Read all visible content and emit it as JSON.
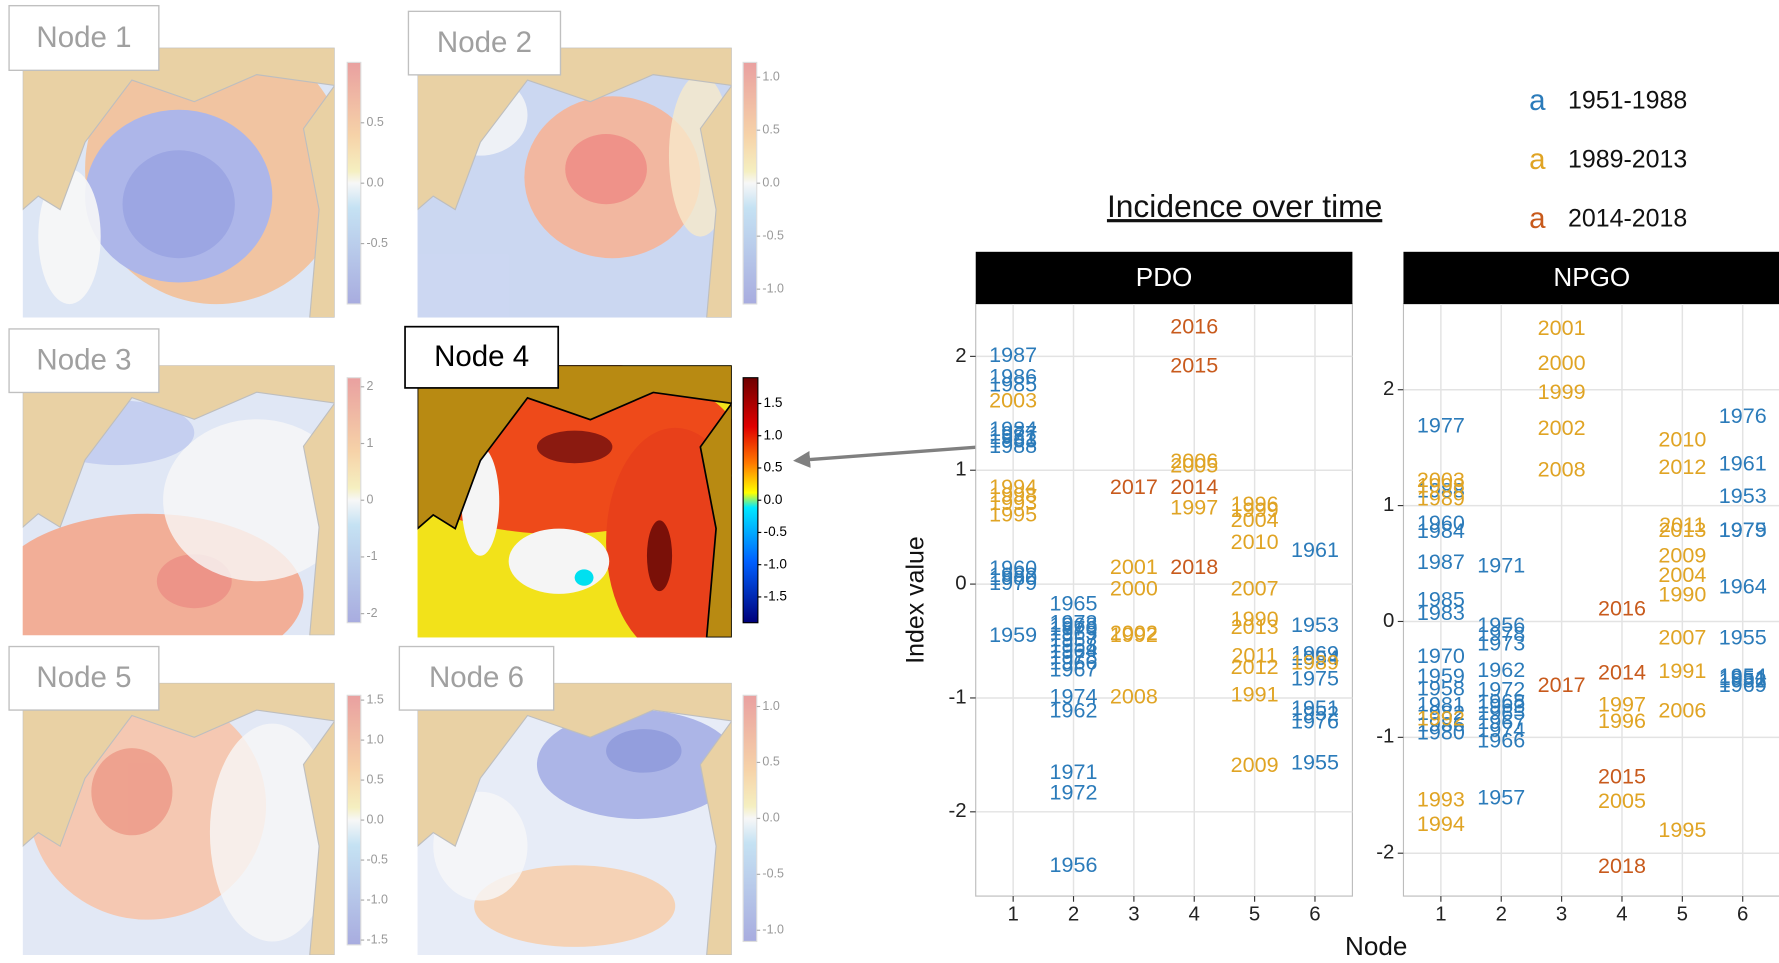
{
  "maps": [
    {
      "title": "Node 1",
      "colorbar_lim": [
        -1.0,
        1.0
      ],
      "colorbar_ticks": [
        0.5,
        {
          "value": 0,
          "label": "0.0"
        },
        -0.5
      ],
      "highlighted": false
    },
    {
      "title": "Node 2",
      "colorbar_lim": [
        -1.14,
        1.14
      ],
      "colorbar_ticks": [
        {
          "value": 1,
          "label": "1.0"
        },
        0.5,
        {
          "value": 0,
          "label": "0.0"
        },
        -0.5,
        {
          "value": -1,
          "label": "-1.0"
        }
      ],
      "highlighted": false
    },
    {
      "title": "Node 3",
      "colorbar_lim": [
        -2.16,
        2.16
      ],
      "colorbar_ticks": [
        2,
        1,
        0,
        -1,
        -2
      ],
      "highlighted": false
    },
    {
      "title": "Node 4",
      "colorbar_lim": [
        -1.9,
        1.9
      ],
      "colorbar_ticks": [
        1.5,
        {
          "value": 1,
          "label": "1.0"
        },
        0.5,
        {
          "value": 0,
          "label": "0.0"
        },
        -0.5,
        {
          "value": -1,
          "label": "-1.0"
        },
        -1.5
      ],
      "highlighted": true
    },
    {
      "title": "Node 5",
      "colorbar_lim": [
        -1.56,
        1.56
      ],
      "colorbar_ticks": [
        1.5,
        {
          "value": 1,
          "label": "1.0"
        },
        0.5,
        {
          "value": 0,
          "label": "0.0"
        },
        -0.5,
        {
          "value": -1,
          "label": "-1.0"
        },
        -1.5
      ],
      "highlighted": false
    },
    {
      "title": "Node 6",
      "colorbar_lim": [
        -1.1,
        1.1
      ],
      "colorbar_ticks": [
        {
          "value": 1,
          "label": "1.0"
        },
        0.5,
        {
          "value": 0,
          "label": "0.0"
        },
        -0.5,
        {
          "value": -1,
          "label": "-1.0"
        }
      ],
      "highlighted": false
    }
  ],
  "heading": "Incidence over time",
  "chart_data": [
    {
      "type": "text-scatter",
      "title": "PDO",
      "ylabel": "Index value",
      "legend_key": "a",
      "xlim": [
        0.38,
        6.62
      ],
      "xticks": [
        1,
        2,
        3,
        4,
        5,
        6
      ],
      "ylim": [
        -2.74,
        2.46
      ],
      "yticks": [
        2,
        1,
        0,
        -1,
        -2
      ],
      "grid": true,
      "series": [
        {
          "name": "1951-1988",
          "color": "#2b7bba",
          "x": [
            1,
            1,
            1,
            1,
            1,
            1,
            1,
            1,
            1,
            1,
            1,
            1,
            1,
            2,
            2,
            2,
            2,
            2,
            2,
            2,
            2,
            2,
            2,
            2,
            2,
            2,
            2,
            2,
            2,
            6,
            6,
            6,
            6,
            6,
            6,
            6,
            6,
            6
          ],
          "values": [
            2.0,
            1.81,
            1.74,
            1.35,
            1.31,
            1.28,
            1.25,
            1.2,
            0.13,
            0.07,
            0.04,
            0.0,
            -0.46,
            -0.18,
            -0.35,
            -0.37,
            -0.4,
            -0.44,
            -0.5,
            -0.55,
            -0.6,
            -0.65,
            -0.7,
            -0.76,
            -1.0,
            -1.12,
            -1.66,
            -1.84,
            -2.48,
            0.29,
            -0.37,
            -0.62,
            -0.66,
            -0.84,
            -1.1,
            -1.15,
            -1.22,
            -1.58
          ],
          "labels": [
            "1987",
            "1986",
            "1985",
            "1984",
            "1977",
            "1981",
            "1983",
            "1988",
            "1960",
            "1982",
            "1980",
            "1979",
            "1959",
            "1965",
            "1973",
            "1968",
            "1970",
            "1963",
            "1957",
            "1958",
            "1964",
            "1978",
            "1966",
            "1967",
            "1974",
            "1962",
            "1971",
            "1972",
            "1956",
            "1961",
            "1953",
            "1969",
            "1954",
            "1975",
            "1951",
            "1952",
            "1976",
            "1955"
          ]
        },
        {
          "name": "1989-2013",
          "color": "#e0a424",
          "x": [
            1,
            1,
            1,
            1,
            1,
            3,
            3,
            3,
            3,
            3,
            4,
            4,
            4,
            5,
            5,
            5,
            5,
            5,
            5,
            5,
            5,
            5,
            5,
            5,
            6
          ],
          "values": [
            1.6,
            0.84,
            0.77,
            0.7,
            0.6,
            0.14,
            -0.05,
            -0.44,
            -0.46,
            -1.0,
            1.07,
            1.03,
            0.66,
            0.69,
            0.64,
            0.55,
            0.36,
            -0.05,
            -0.32,
            -0.39,
            -0.64,
            -0.74,
            -0.98,
            -1.6,
            -0.7
          ],
          "labels": [
            "2003",
            "1994",
            "1998",
            "1993",
            "1995",
            "2001",
            "2000",
            "2002",
            "1992",
            "2008",
            "2006",
            "2005",
            "1997",
            "1996",
            "1999",
            "2004",
            "2010",
            "2007",
            "1990",
            "2013",
            "2011",
            "2012",
            "1991",
            "2009",
            "1989"
          ]
        },
        {
          "name": "2014-2018",
          "color": "#c85a1c",
          "x": [
            3,
            4,
            4,
            4,
            4
          ],
          "values": [
            0.84,
            2.25,
            1.91,
            0.84,
            0.14
          ],
          "labels": [
            "2017",
            "2016",
            "2015",
            "2014",
            "2018"
          ]
        }
      ]
    },
    {
      "type": "text-scatter",
      "title": "NPGO",
      "xlabel": "Node",
      "xlim": [
        0.38,
        6.62
      ],
      "xticks": [
        1,
        2,
        3,
        4,
        5,
        6
      ],
      "ylim": [
        -2.37,
        2.74
      ],
      "yticks": [
        2,
        1,
        0,
        -1,
        -2
      ],
      "grid": true,
      "series": [
        {
          "color": "#2b7bba",
          "x": [
            1,
            1,
            1,
            1,
            1,
            1,
            1,
            1,
            1,
            1,
            1,
            1,
            1,
            1,
            2,
            2,
            2,
            2,
            2,
            2,
            2,
            2,
            2,
            2,
            2,
            2,
            2,
            6,
            6,
            6,
            6,
            6,
            6,
            6,
            6,
            6,
            6,
            6
          ],
          "values": [
            1.68,
            1.12,
            0.84,
            0.77,
            0.5,
            0.18,
            0.06,
            -0.31,
            -0.48,
            -0.59,
            -0.73,
            -0.8,
            -0.9,
            -0.97,
            0.47,
            -0.04,
            -0.12,
            -0.2,
            -0.43,
            -0.6,
            -0.7,
            -0.74,
            -0.8,
            -0.88,
            -0.95,
            -1.04,
            -1.53,
            1.76,
            1.35,
            1.07,
            0.78,
            0.78,
            0.29,
            -0.15,
            -0.48,
            -0.5,
            -0.52,
            -0.56
          ],
          "labels": [
            "1977",
            "1988",
            "1960",
            "1984",
            "1987",
            "1985",
            "1983",
            "1970",
            "1959",
            "1958",
            "1981",
            "1982",
            "1986",
            "1980",
            "1971",
            "1956",
            "1978",
            "1973",
            "1962",
            "1972",
            "1968",
            "1963",
            "1965",
            "1967",
            "1974",
            "1966",
            "1957",
            "1976",
            "1961",
            "1953",
            "1975",
            "1979",
            "1964",
            "1955",
            "1954",
            "1951",
            "1952",
            "1969"
          ]
        },
        {
          "color": "#e0a424",
          "x": [
            1,
            1,
            1,
            1,
            1,
            1,
            3,
            3,
            3,
            3,
            3,
            4,
            4,
            4,
            5,
            5,
            5,
            5,
            5,
            5,
            5,
            5,
            5,
            5,
            5
          ],
          "values": [
            1.21,
            1.16,
            1.05,
            -0.85,
            -1.55,
            -1.76,
            2.52,
            2.22,
            1.97,
            1.66,
            1.3,
            -0.73,
            -0.87,
            -1.56,
            1.56,
            1.32,
            0.82,
            0.78,
            0.56,
            0.39,
            0.22,
            -0.15,
            -0.44,
            -0.78,
            -1.81
          ],
          "labels": [
            "2003",
            "1998",
            "1989",
            "1992",
            "1993",
            "1994",
            "2001",
            "2000",
            "1999",
            "2002",
            "2008",
            "1997",
            "1996",
            "2005",
            "2010",
            "2012",
            "2011",
            "2013",
            "2009",
            "2004",
            "1990",
            "2007",
            "1991",
            "2006",
            "1995"
          ]
        },
        {
          "color": "#c85a1c",
          "x": [
            3,
            4,
            4,
            4,
            4
          ],
          "values": [
            -0.56,
            0.1,
            -0.45,
            -1.35,
            -2.12
          ],
          "labels": [
            "2017",
            "2016",
            "2014",
            "2015",
            "2018"
          ]
        }
      ]
    }
  ]
}
